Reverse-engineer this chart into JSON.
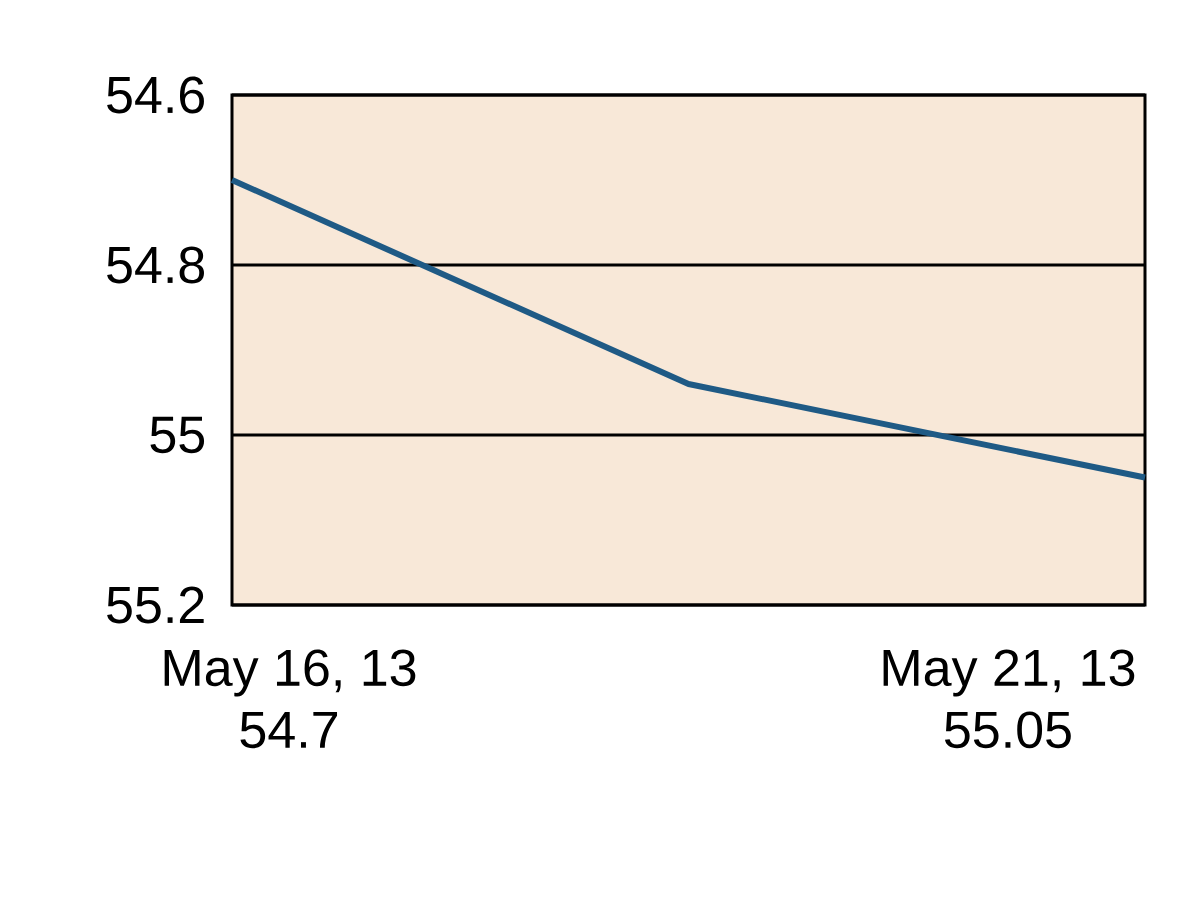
{
  "chart_data": {
    "type": "line",
    "categories": [
      null,
      null,
      null
    ],
    "values": [
      54.7,
      54.94,
      55.05
    ],
    "annotations": [
      "May 16, 13",
      "54.7",
      "May 21, 13",
      "55.05"
    ],
    "color": "#1f5a85",
    "ylim": [
      55.2,
      54.6
    ],
    "yticks": [
      54.6,
      54.8,
      55,
      55.2
    ],
    "grid": "y"
  }
}
